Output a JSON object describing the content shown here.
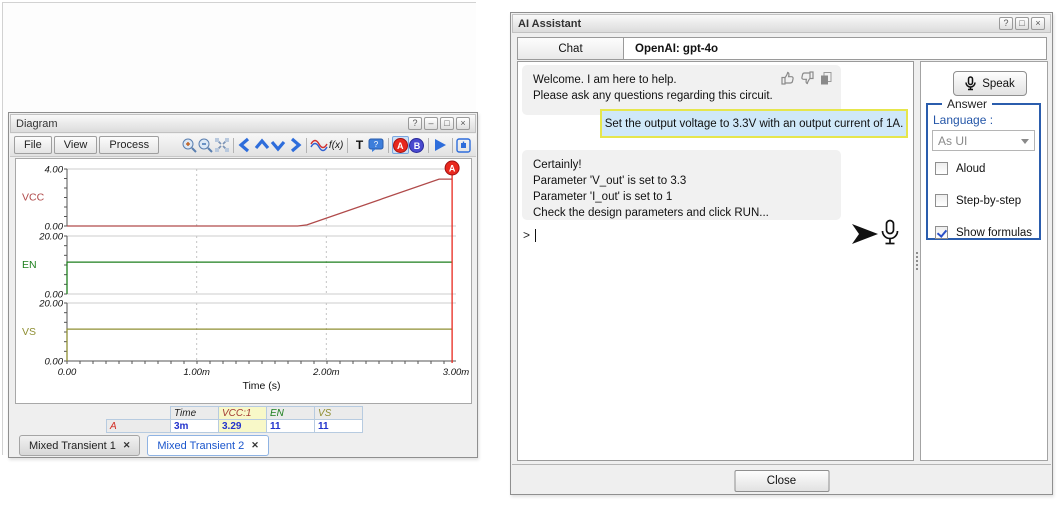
{
  "colors": {
    "cursor_a": "#e8281e",
    "cursor_b": "#4949cf",
    "accent_blue": "#2e6ddb",
    "answer_border": "#2b5dad",
    "user_bubble_bg": "#cfe8f8",
    "user_bubble_border": "#e6e64c",
    "bot_bubble_bg": "#f1f1f1",
    "table_highlight": "#f8f8c8",
    "active_tab_text": "#1a55cc"
  },
  "diagram_window": {
    "title": "Diagram",
    "titlebar_buttons": [
      "?",
      "–",
      "□",
      "×"
    ],
    "menus": [
      "File",
      "View",
      "Process"
    ],
    "toolbar": {
      "fx_label": "f(x)",
      "text_tool_label": "T",
      "cursor_a_label": "A",
      "cursor_b_label": "B"
    },
    "chart_data": {
      "type": "line",
      "xlabel": "Time (s)",
      "xlim": [
        0,
        0.003
      ],
      "x_ticks": [
        {
          "t": 0,
          "label": "0.00"
        },
        {
          "t": 0.001,
          "label": "1.00m"
        },
        {
          "t": 0.002,
          "label": "2.00m"
        },
        {
          "t": 0.003,
          "label": "3.00m"
        }
      ],
      "x_grid": [
        0.001,
        0.002
      ],
      "cursor": {
        "label": "A",
        "t": 0.00297,
        "color": "#e8281e",
        "time_display": "3m"
      },
      "subplots": [
        {
          "name": "VCC",
          "color": "#b04a4a",
          "ylim": [
            0,
            4
          ],
          "ytick_top": "4.00",
          "ytick_bottom": "0.00",
          "points": [
            [
              0,
              0
            ],
            [
              0.00178,
              0
            ],
            [
              0.00185,
              0.08
            ],
            [
              0.00287,
              3.29
            ],
            [
              0.00297,
              3.29
            ]
          ]
        },
        {
          "name": "EN",
          "color": "#1d7f1d",
          "ylim": [
            0,
            20
          ],
          "ytick_top": "20.00",
          "ytick_bottom": "0.00",
          "points": [
            [
              0,
              0
            ],
            [
              0,
              11
            ],
            [
              0.00297,
              11
            ]
          ]
        },
        {
          "name": "VS",
          "color": "#8f8f33",
          "ylim": [
            0,
            20
          ],
          "ytick_top": "20.00",
          "ytick_bottom": "0.00",
          "points": [
            [
              0,
              0
            ],
            [
              0,
              11
            ],
            [
              0.00297,
              11
            ]
          ]
        }
      ]
    },
    "cursor_table": {
      "headers": [
        "",
        "Time",
        "VCC:1",
        "EN",
        "VS"
      ],
      "row": {
        "label": "A",
        "values": [
          "3m",
          "3.29",
          "11",
          "11"
        ]
      }
    },
    "tabs": [
      {
        "label": "Mixed Transient 1",
        "close": "✕",
        "active": false
      },
      {
        "label": "Mixed Transient 2",
        "close": "✕",
        "active": true
      }
    ]
  },
  "ai_window": {
    "title": "AI Assistant",
    "titlebar_buttons": [
      "?",
      "□",
      "×"
    ],
    "tab_label": "Chat",
    "model_label": "OpenAI: gpt-4o",
    "messages": {
      "welcome": {
        "line1": "Welcome. I am here to help.",
        "line2": "Please ask any questions regarding this circuit."
      },
      "user": {
        "line1": "Set the output voltage to 3.3V with an output current of 1A."
      },
      "reply": {
        "line1": "Certainly!",
        "line2": "Parameter 'V_out' is set to 3.3",
        "line3": "Parameter 'I_out' is set to 1",
        "line4": "Check the design parameters and click RUN..."
      }
    },
    "prompt": ">",
    "right_panel": {
      "speak_label": "Speak",
      "answer_group": {
        "legend": "Answer",
        "language_label": "Language :",
        "language_value": "As UI",
        "checkboxes": [
          {
            "label": "Aloud",
            "checked": false
          },
          {
            "label": "Step-by-step",
            "checked": false
          },
          {
            "label": "Show formulas",
            "checked": true
          }
        ]
      }
    },
    "close_label": "Close"
  }
}
